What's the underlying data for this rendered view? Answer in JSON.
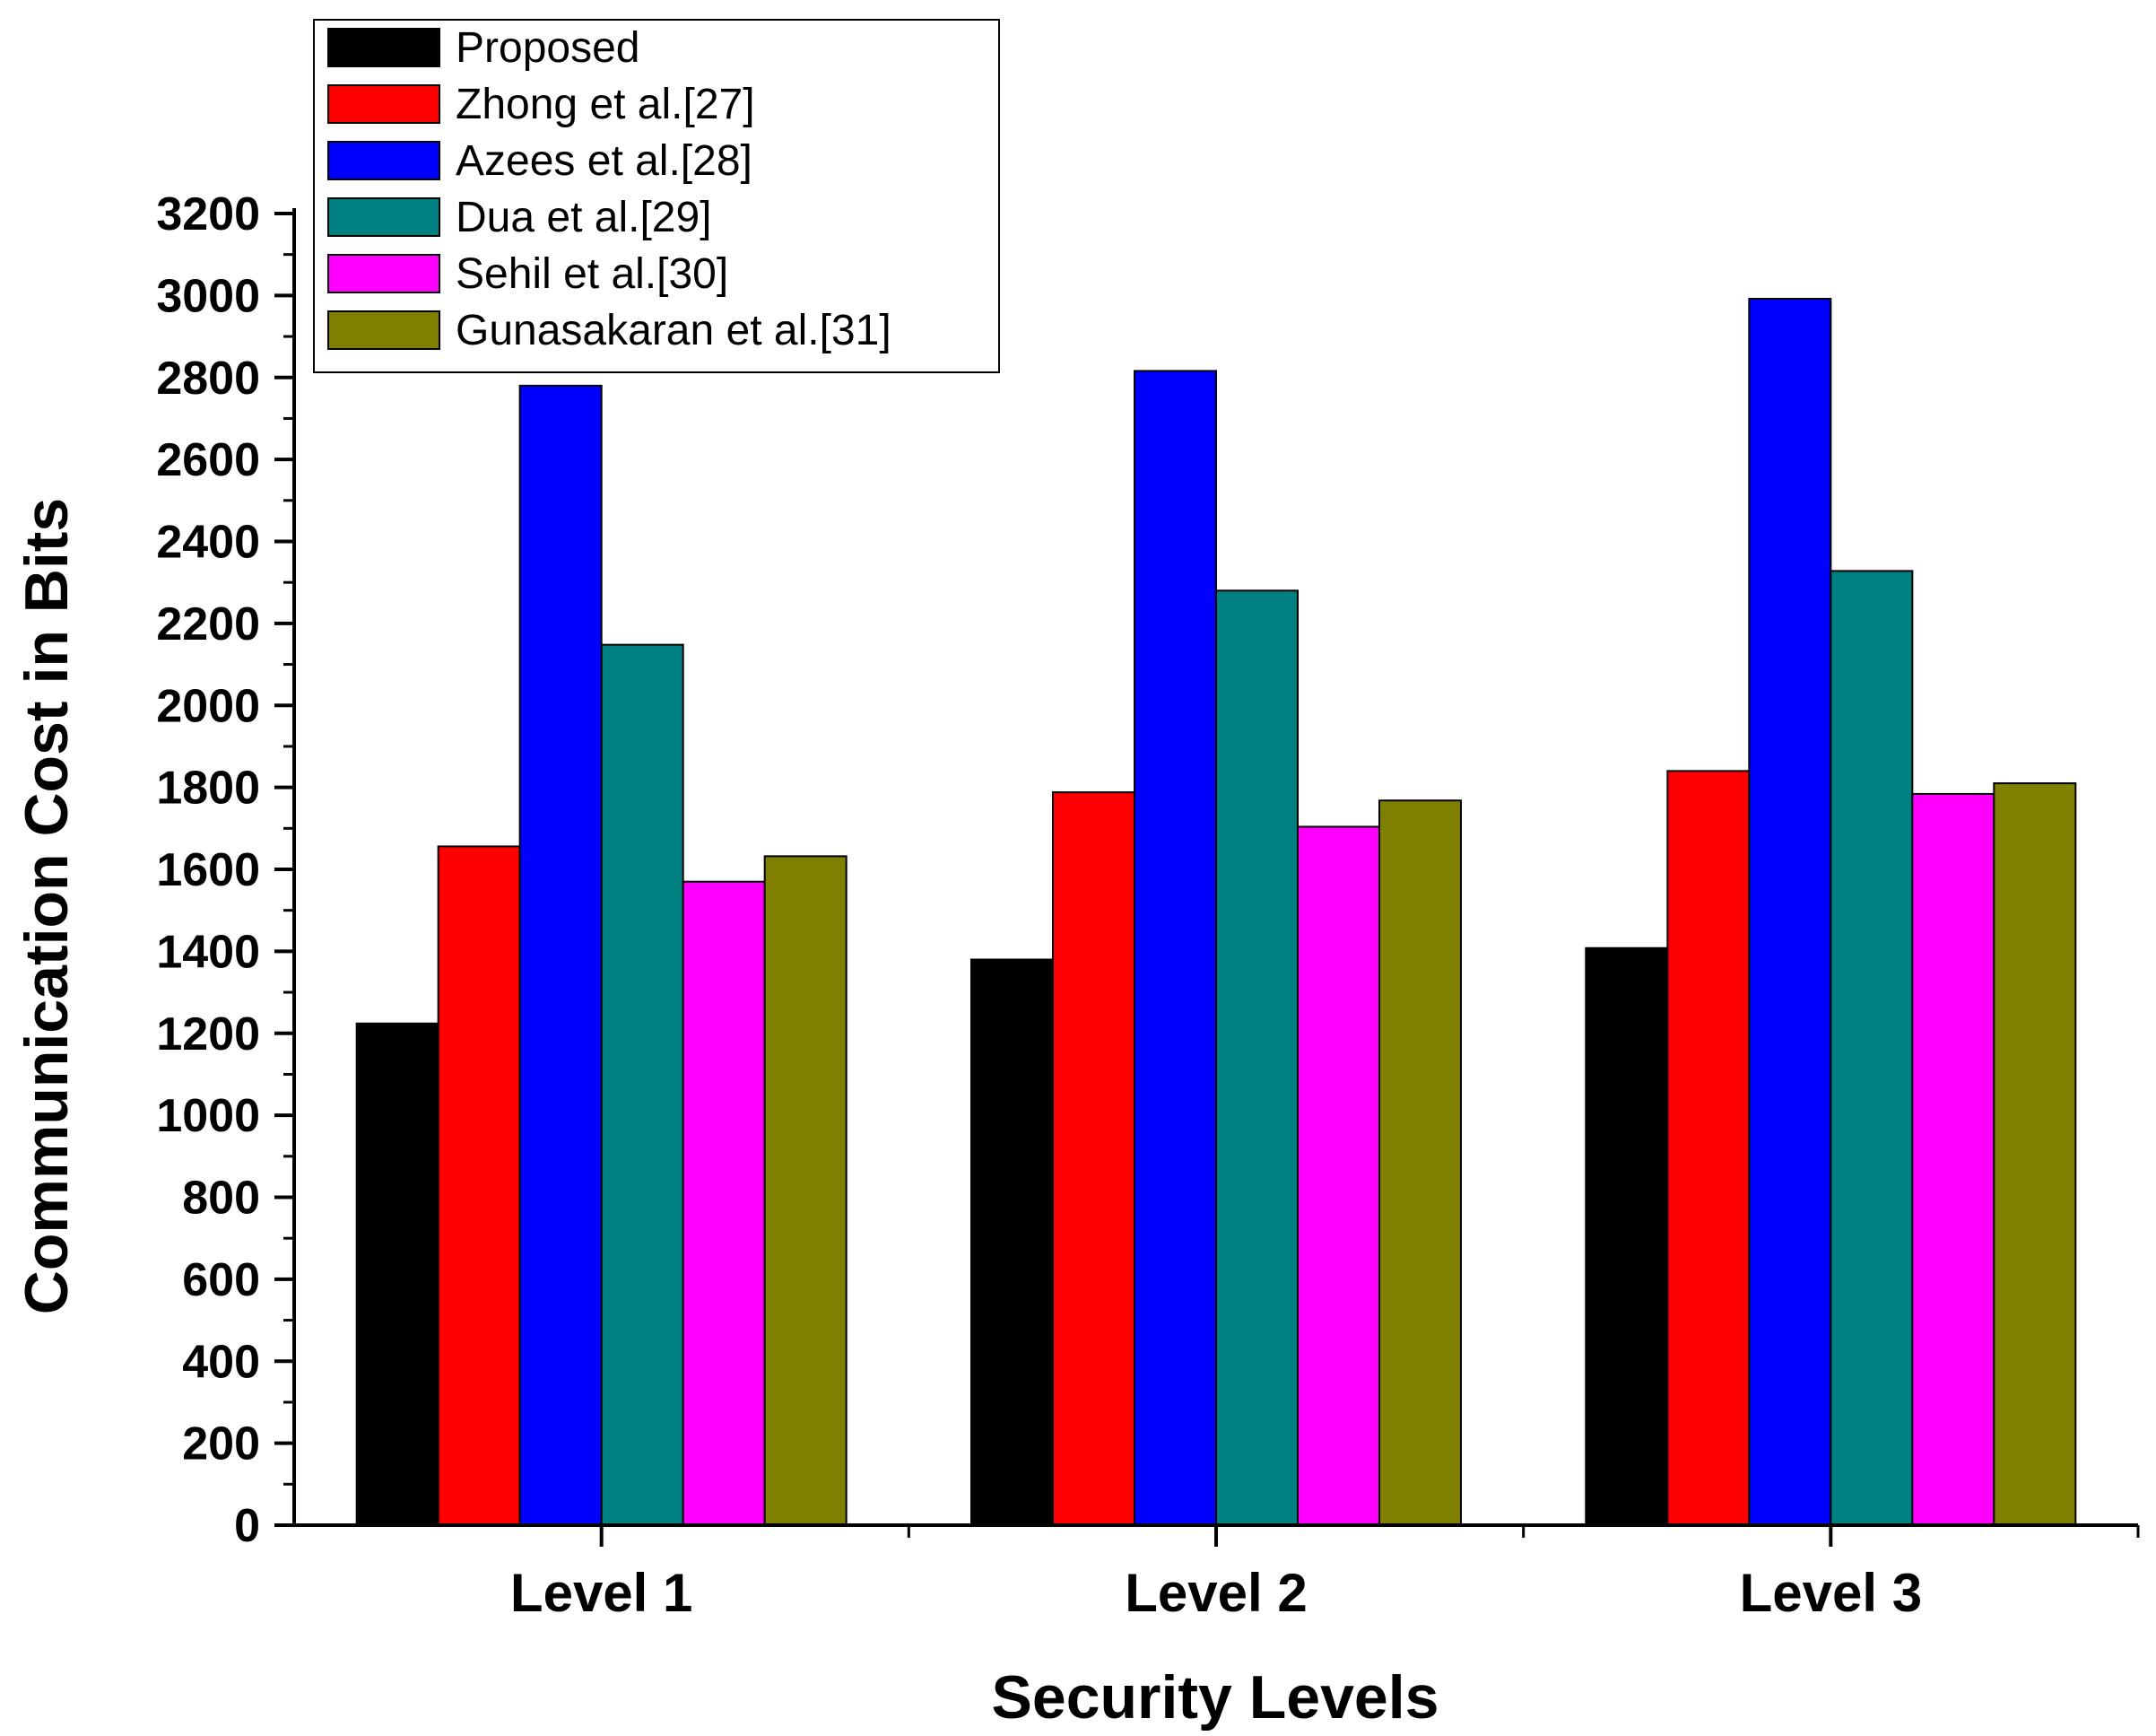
{
  "chart_data": {
    "type": "bar",
    "title": "",
    "xlabel": "Security Levels",
    "ylabel": "Communication Cost in Bits",
    "categories": [
      "Level 1",
      "Level 2",
      "Level 3"
    ],
    "ylim": [
      0,
      3200
    ],
    "yticks": [
      0,
      200,
      400,
      600,
      800,
      1000,
      1200,
      1400,
      1600,
      1800,
      2000,
      2200,
      2400,
      2600,
      2800,
      3000,
      3200
    ],
    "legend_position": "top-left",
    "grid": false,
    "series": [
      {
        "name": "Proposed",
        "color": "#000000",
        "values": [
          1224,
          1380,
          1408
        ]
      },
      {
        "name": "Zhong et al.[27]",
        "color": "#ff0000",
        "values": [
          1656,
          1788,
          1840
        ]
      },
      {
        "name": "Azees et al.[28]",
        "color": "#0000ff",
        "values": [
          2780,
          2816,
          2992
        ]
      },
      {
        "name": "Dua et al.[29]",
        "color": "#008080",
        "values": [
          2148,
          2280,
          2328
        ]
      },
      {
        "name": "Sehil et al.[30]",
        "color": "#ff00ff",
        "values": [
          1570,
          1704,
          1784
        ]
      },
      {
        "name": "Gunasakaran et al.[31]",
        "color": "#808000",
        "values": [
          1632,
          1768,
          1810
        ]
      }
    ]
  }
}
